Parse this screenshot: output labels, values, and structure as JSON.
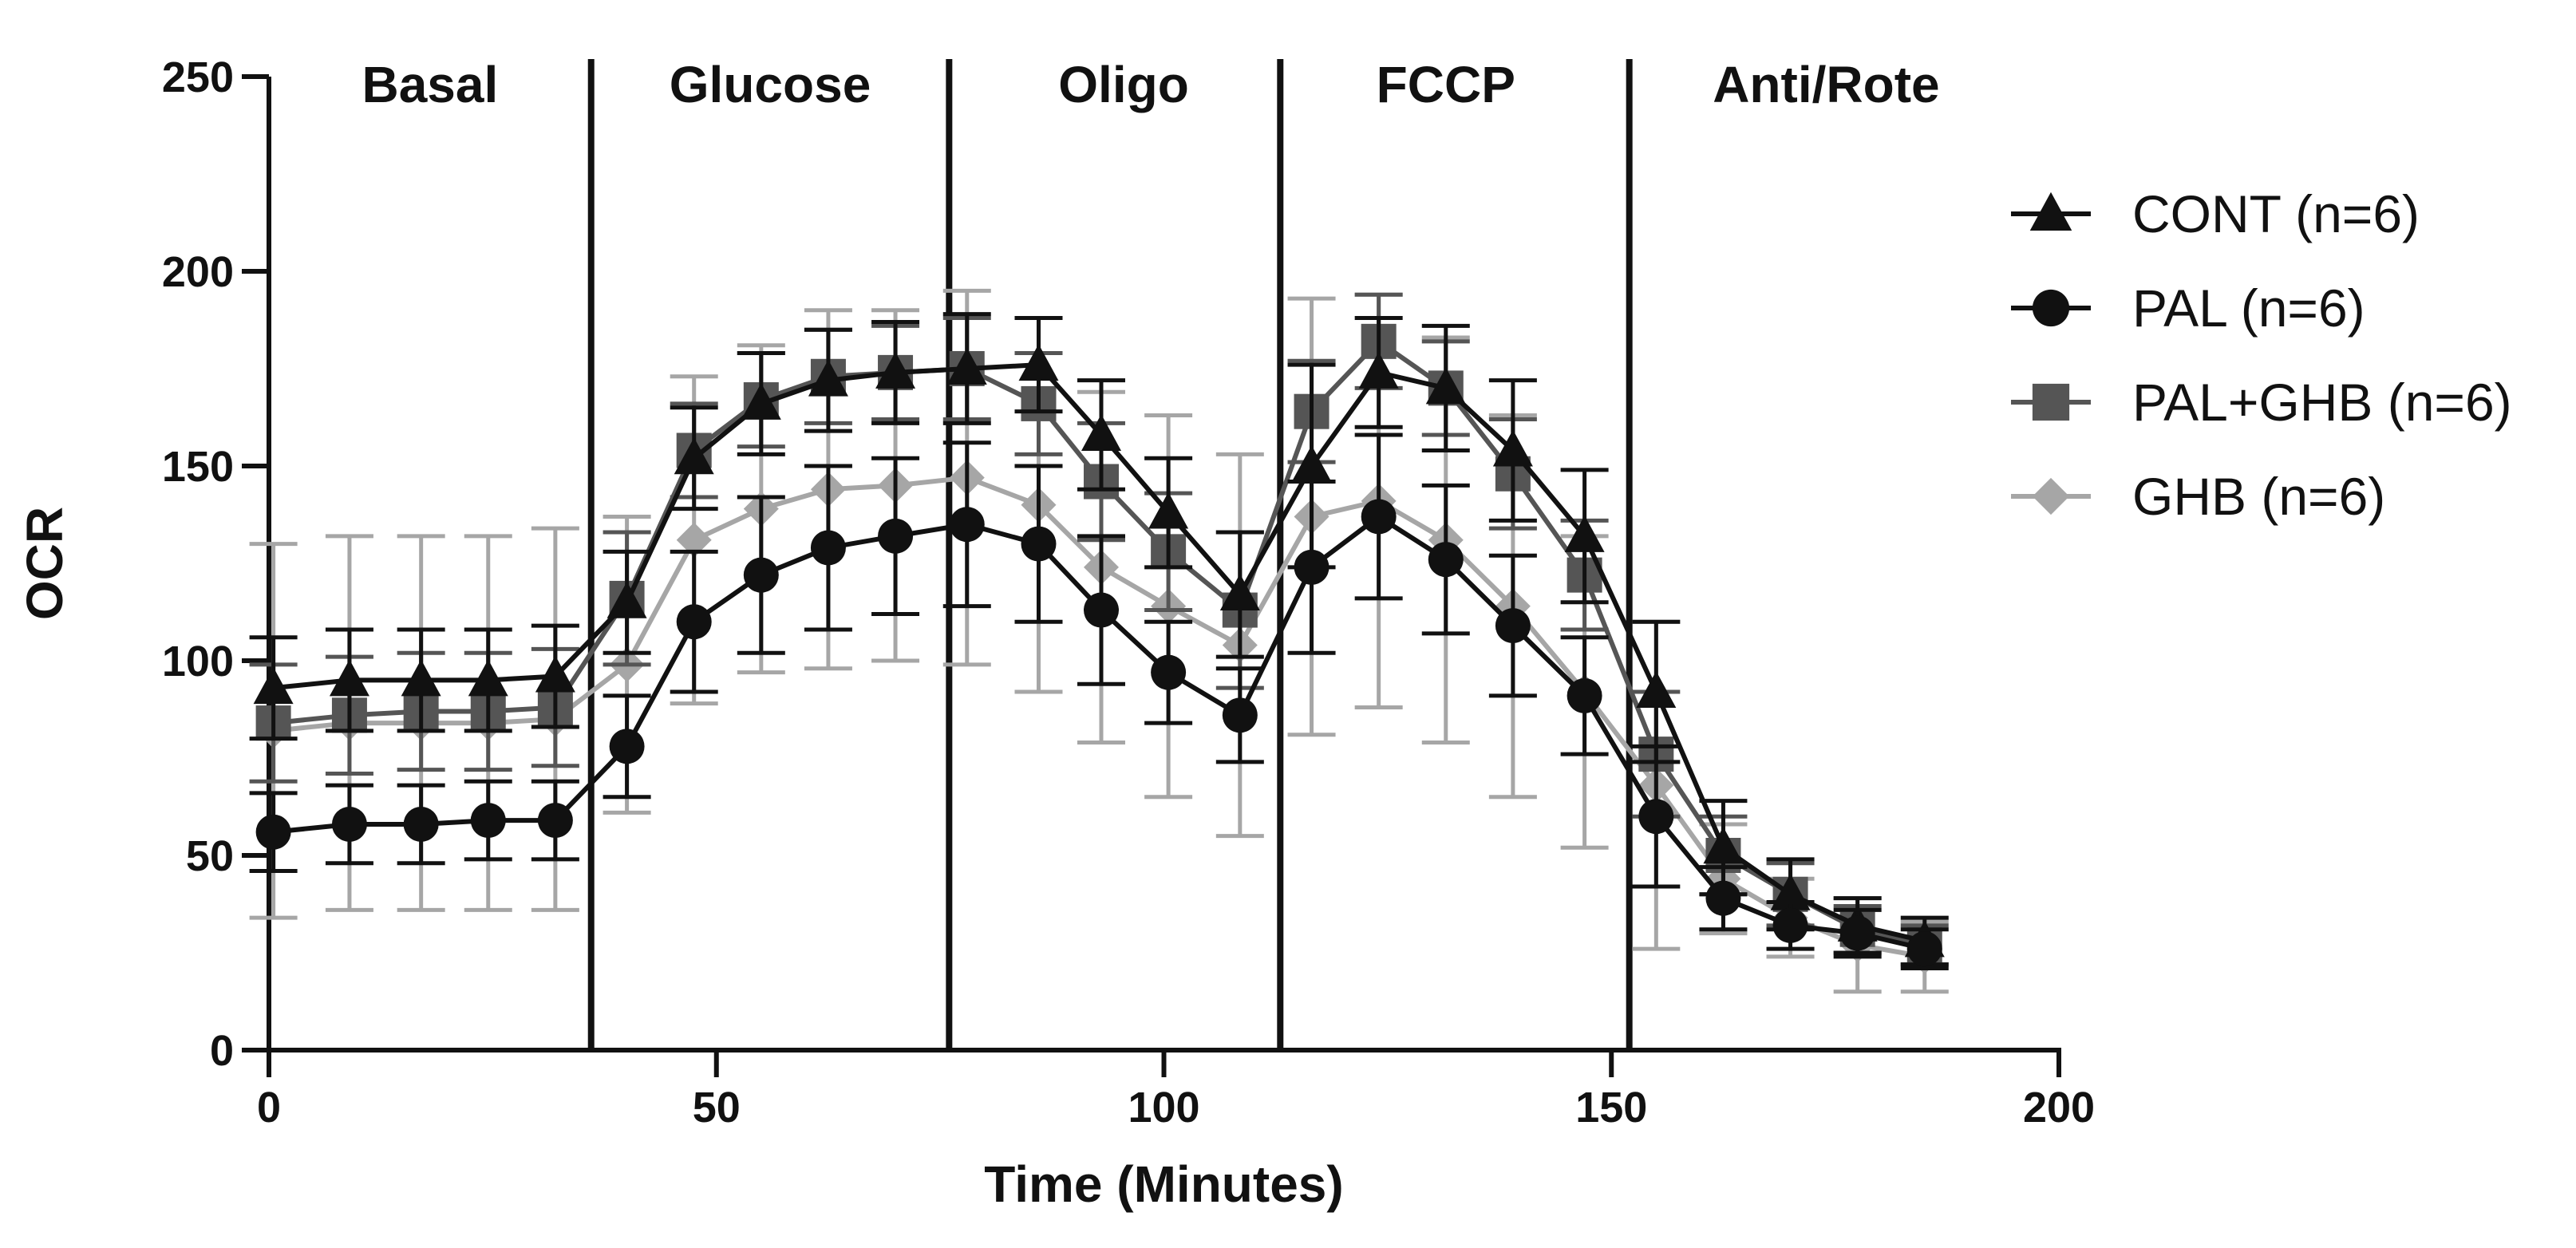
{
  "chart_data": {
    "type": "line",
    "title": "",
    "xlabel": "Time (Minutes)",
    "ylabel": "OCR",
    "xlim": [
      0,
      200
    ],
    "ylim": [
      0,
      250
    ],
    "xticks": [
      0,
      50,
      100,
      150,
      200
    ],
    "yticks": [
      0,
      50,
      100,
      150,
      200,
      250
    ],
    "grid": false,
    "legend_position": "right",
    "phase_lines": [
      36,
      76,
      113,
      152
    ],
    "phases": [
      {
        "label": "Basal",
        "start": 0,
        "end": 36
      },
      {
        "label": "Glucose",
        "start": 36,
        "end": 76
      },
      {
        "label": "Oligo",
        "start": 76,
        "end": 113
      },
      {
        "label": "FCCP",
        "start": 113,
        "end": 152
      },
      {
        "label": "Anti/Rote",
        "start": 152,
        "end": 200
      }
    ],
    "x": [
      0.5,
      9,
      17,
      24.5,
      32,
      40,
      47.5,
      55,
      62.5,
      70,
      78,
      86,
      93,
      100.5,
      108.5,
      116.5,
      124,
      131.5,
      139,
      147,
      155,
      162.5,
      170,
      177.5,
      185
    ],
    "series": [
      {
        "name": "CONT (n=6)",
        "marker": "triangle",
        "color": "#111111",
        "values": [
          93,
          95,
          95,
          95,
          96,
          115,
          152,
          166,
          172,
          174,
          175,
          176,
          158,
          138,
          117,
          150,
          174,
          170,
          154,
          132,
          92,
          52,
          40,
          32,
          28
        ],
        "errors": [
          13,
          13,
          13,
          13,
          13,
          13,
          13,
          13,
          13,
          13,
          14,
          12,
          14,
          14,
          16,
          26,
          14,
          16,
          18,
          17,
          18,
          12,
          9,
          7,
          6
        ]
      },
      {
        "name": "PAL (n=6)",
        "marker": "circle",
        "color": "#111111",
        "values": [
          56,
          58,
          58,
          59,
          59,
          78,
          110,
          122,
          129,
          132,
          135,
          130,
          113,
          97,
          86,
          124,
          137,
          126,
          109,
          91,
          60,
          39,
          32,
          30,
          26
        ],
        "errors": [
          10,
          10,
          10,
          10,
          10,
          13,
          18,
          20,
          21,
          20,
          21,
          20,
          19,
          13,
          12,
          22,
          21,
          19,
          18,
          15,
          18,
          8,
          6,
          6,
          5
        ]
      },
      {
        "name": "PAL+GHB (n=6)",
        "marker": "square",
        "color": "#555555",
        "values": [
          84,
          86,
          87,
          87,
          88,
          116,
          154,
          167,
          173,
          174,
          175,
          166,
          146,
          128,
          113,
          164,
          182,
          170,
          148,
          122,
          76,
          50,
          40,
          31,
          27
        ],
        "errors": [
          15,
          15,
          15,
          15,
          15,
          17,
          12,
          12,
          12,
          12,
          13,
          13,
          15,
          15,
          20,
          13,
          12,
          12,
          14,
          14,
          16,
          10,
          8,
          6,
          5
        ]
      },
      {
        "name": "GHB (n=6)",
        "marker": "diamond",
        "color": "#a6a6a6",
        "values": [
          82,
          84,
          84,
          84,
          85,
          99,
          131,
          139,
          144,
          145,
          147,
          140,
          124,
          114,
          104,
          137,
          141,
          131,
          114,
          92,
          68,
          44,
          34,
          27,
          24
        ],
        "errors": [
          48,
          48,
          48,
          48,
          49,
          38,
          42,
          42,
          46,
          45,
          48,
          48,
          45,
          49,
          49,
          56,
          53,
          52,
          49,
          40,
          42,
          14,
          10,
          12,
          9
        ]
      }
    ]
  }
}
